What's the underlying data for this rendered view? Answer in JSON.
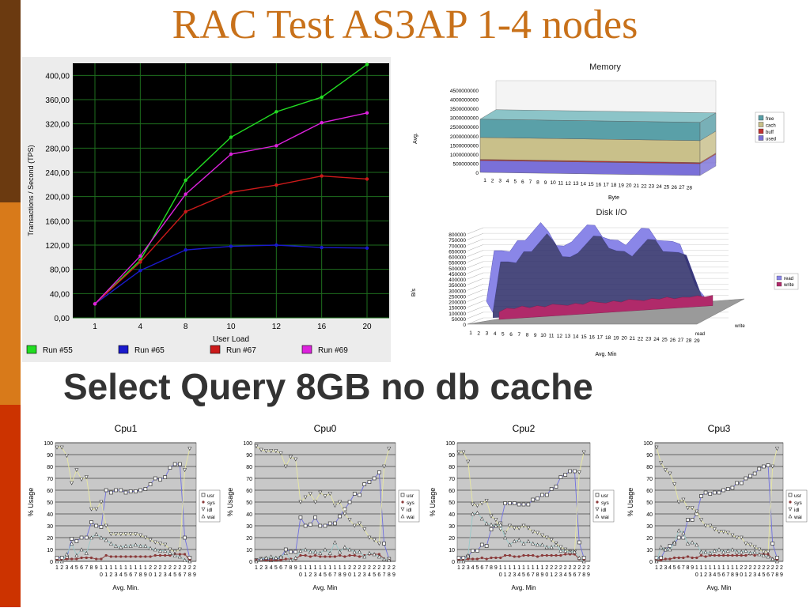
{
  "slide": {
    "title": "RAC Test AS3AP 1-4 nodes",
    "subtitle": "Select Query 8GB no db cache",
    "stripe_colors": [
      "#6b3a10",
      "#d87a1a",
      "#cc3300"
    ]
  },
  "chart_data": [
    {
      "id": "tps",
      "type": "line",
      "title": "",
      "xlabel": "User Load",
      "ylabel": "Transactions / Second (TPS)",
      "categories": [
        "1",
        "4",
        "8",
        "10",
        "12",
        "16",
        "20"
      ],
      "ylim": [
        0,
        420
      ],
      "yticks": [
        "0,00",
        "40,00",
        "80,00",
        "120,00",
        "160,00",
        "200,00",
        "240,00",
        "280,00",
        "320,00",
        "360,00",
        "400,00"
      ],
      "grid": true,
      "legend": "bottom",
      "series": [
        {
          "name": "Run #55",
          "color": "#22dd22",
          "values": [
            23,
            95,
            227,
            298,
            340,
            364,
            418
          ]
        },
        {
          "name": "Run #65",
          "color": "#1a1acc",
          "values": [
            23,
            78,
            112,
            118,
            120,
            116,
            115
          ]
        },
        {
          "name": "Run #67",
          "color": "#cc1a1a",
          "values": [
            23,
            92,
            175,
            207,
            219,
            234,
            229
          ]
        },
        {
          "name": "Run #69",
          "color": "#dd22dd",
          "values": [
            23,
            102,
            204,
            270,
            284,
            322,
            338
          ]
        }
      ]
    },
    {
      "id": "memory",
      "type": "area",
      "title": "Memory",
      "xlabel": "Byte",
      "ylabel": "Avg.",
      "categories": [
        "1",
        "2",
        "3",
        "4",
        "5",
        "6",
        "7",
        "8",
        "9",
        "10",
        "11",
        "12",
        "13",
        "14",
        "15",
        "16",
        "17",
        "18",
        "19",
        "20",
        "21",
        "22",
        "23",
        "24",
        "25",
        "26",
        "27",
        "28"
      ],
      "yticks": [
        "0",
        "500000000",
        "1000000000",
        "1500000000",
        "2000000000",
        "2500000000",
        "3000000000",
        "3500000000",
        "4000000000",
        "4500000000"
      ],
      "ylim": [
        0,
        4500000000
      ],
      "legend": "right",
      "series": [
        {
          "name": "free",
          "color": "#5aa0a8",
          "value": 1000000000
        },
        {
          "name": "cach",
          "color": "#c9c08a",
          "value": 1200000000
        },
        {
          "name": "buff",
          "color": "#c03030",
          "value": 60000000
        },
        {
          "name": "used",
          "color": "#7a70d8",
          "value": 650000000
        }
      ]
    },
    {
      "id": "diskio",
      "type": "area",
      "title": "Disk I/O",
      "xlabel": "Avg. Min",
      "ylabel": "B/s",
      "categories": [
        "1",
        "2",
        "3",
        "4",
        "5",
        "6",
        "7",
        "8",
        "9",
        "10",
        "11",
        "12",
        "13",
        "14",
        "15",
        "16",
        "17",
        "18",
        "19",
        "20",
        "21",
        "22",
        "23",
        "24",
        "25",
        "26",
        "27",
        "28",
        "29"
      ],
      "yticks": [
        "0",
        "50000",
        "100000",
        "150000",
        "200000",
        "250000",
        "300000",
        "350000",
        "400000",
        "450000",
        "500000",
        "550000",
        "600000",
        "650000",
        "700000",
        "750000",
        "800000"
      ],
      "ylim": [
        0,
        800000
      ],
      "depth_labels": [
        "write",
        "read"
      ],
      "legend": "right",
      "series": [
        {
          "name": "read",
          "color": "#8a86e8",
          "values": [
            20000,
            470000,
            470000,
            460000,
            560000,
            560000,
            640000,
            720000,
            640000,
            520000,
            520000,
            560000,
            640000,
            720000,
            720000,
            620000,
            600000,
            600000,
            560000,
            640000,
            720000,
            720000,
            620000,
            620000,
            620000,
            600000,
            420000,
            240000,
            160000
          ]
        },
        {
          "name": "write",
          "color": "#b02a6a",
          "values": [
            10000,
            40000,
            30000,
            50000,
            30000,
            45000,
            30000,
            50000,
            40000,
            30000,
            45000,
            30000,
            55000,
            40000,
            30000,
            45000,
            30000,
            50000,
            40000,
            30000,
            45000,
            35000,
            50000,
            30000,
            40000,
            35000,
            45000,
            30000,
            40000
          ]
        }
      ]
    },
    {
      "id": "cpu1",
      "type": "scatter",
      "title": "Cpu1",
      "xlabel": "Avg. Min.",
      "ylabel": "% Usage",
      "ylim": [
        0,
        100
      ],
      "yticks": [
        "0",
        "10",
        "20",
        "30",
        "40",
        "50",
        "60",
        "70",
        "80",
        "90",
        "100"
      ],
      "xticks_top": [
        "1",
        "2",
        "3",
        "4",
        "5",
        "6",
        "7",
        "8",
        "9",
        "1",
        "1",
        "1",
        "1",
        "1",
        "1",
        "1",
        "1",
        "1",
        "1",
        "2",
        "2",
        "2",
        "2",
        "2",
        "2",
        "2",
        "2",
        "2",
        "2"
      ],
      "xticks_bottom": [
        "",
        "",
        "",
        "",
        "",
        "",
        "",
        "",
        "",
        "0",
        "1",
        "2",
        "3",
        "4",
        "5",
        "6",
        "7",
        "8",
        "9",
        "0",
        "1",
        "2",
        "3",
        "4",
        "5",
        "6",
        "7",
        "8",
        "9"
      ],
      "legend": "right",
      "series": [
        {
          "name": "usr",
          "values": [
            3,
            3,
            3,
            19,
            17,
            20,
            20,
            33,
            30,
            29,
            60,
            58,
            60,
            60,
            58,
            59,
            59,
            60,
            61,
            65,
            70,
            69,
            71,
            79,
            82,
            82,
            20,
            3
          ]
        },
        {
          "name": "sys",
          "values": [
            1,
            1,
            2,
            2,
            2,
            3,
            3,
            3,
            2,
            2,
            5,
            4,
            4,
            4,
            4,
            4,
            4,
            4,
            4,
            4,
            5,
            5,
            5,
            5,
            6,
            6,
            6,
            1
          ]
        },
        {
          "name": "idl",
          "values": [
            96,
            96,
            89,
            66,
            77,
            69,
            71,
            44,
            44,
            50,
            30,
            23,
            23,
            23,
            23,
            23,
            23,
            22,
            20,
            18,
            16,
            15,
            14,
            10,
            8,
            10,
            77,
            95
          ]
        },
        {
          "name": "wai",
          "values": [
            0,
            0,
            6,
            15,
            5,
            10,
            7,
            20,
            23,
            20,
            18,
            15,
            13,
            12,
            13,
            13,
            14,
            13,
            13,
            11,
            10,
            9,
            9,
            7,
            5,
            4,
            1,
            0
          ]
        }
      ]
    },
    {
      "id": "cpu0",
      "type": "scatter",
      "title": "Cpu0",
      "xlabel": "Avg. Min",
      "ylabel": "% Usage",
      "ylim": [
        0,
        100
      ],
      "yticks": [
        "0",
        "10",
        "20",
        "30",
        "40",
        "50",
        "60",
        "70",
        "80",
        "90",
        "100"
      ],
      "xticks_top": [
        "1",
        "2",
        "3",
        "4",
        "5",
        "6",
        "7",
        "8",
        "9",
        "1",
        "1",
        "1",
        "1",
        "1",
        "1",
        "1",
        "1",
        "1",
        "1",
        "2",
        "2",
        "2",
        "2",
        "2",
        "2",
        "2",
        "2",
        "2",
        "2"
      ],
      "xticks_bottom": [
        "",
        "",
        "",
        "",
        "",
        "",
        "",
        "",
        "",
        "0",
        "1",
        "2",
        "3",
        "4",
        "5",
        "6",
        "7",
        "8",
        "9",
        "0",
        "1",
        "2",
        "3",
        "4",
        "5",
        "6",
        "7",
        "8",
        "9"
      ],
      "legend": "right",
      "series": [
        {
          "name": "usr",
          "values": [
            1,
            2,
            2,
            1,
            2,
            3,
            10,
            8,
            8,
            37,
            30,
            31,
            37,
            30,
            30,
            32,
            32,
            38,
            44,
            50,
            57,
            56,
            65,
            67,
            70,
            75,
            15,
            2
          ]
        },
        {
          "name": "sys",
          "values": [
            1,
            1,
            1,
            1,
            1,
            1,
            2,
            2,
            2,
            5,
            5,
            4,
            5,
            4,
            4,
            4,
            4,
            5,
            4,
            5,
            5,
            4,
            5,
            6,
            6,
            6,
            2,
            1
          ]
        },
        {
          "name": "idl",
          "values": [
            97,
            94,
            93,
            93,
            93,
            91,
            80,
            88,
            86,
            50,
            54,
            57,
            50,
            58,
            55,
            57,
            47,
            50,
            40,
            35,
            30,
            32,
            27,
            20,
            18,
            15,
            80,
            95
          ]
        },
        {
          "name": "wai",
          "values": [
            0,
            2,
            3,
            4,
            3,
            4,
            7,
            1,
            3,
            9,
            10,
            8,
            8,
            7,
            10,
            7,
            16,
            8,
            12,
            10,
            8,
            8,
            4,
            7,
            6,
            4,
            2,
            1
          ]
        }
      ]
    },
    {
      "id": "cpu2",
      "type": "scatter",
      "title": "Cpu2",
      "xlabel": "Avg. Min",
      "ylabel": "% Usage",
      "ylim": [
        0,
        100
      ],
      "yticks": [
        "0",
        "10",
        "20",
        "30",
        "40",
        "50",
        "60",
        "70",
        "80",
        "90",
        "100"
      ],
      "xticks_top": [
        "1",
        "2",
        "3",
        "4",
        "5",
        "6",
        "7",
        "8",
        "9",
        "1",
        "1",
        "1",
        "1",
        "1",
        "1",
        "1",
        "1",
        "1",
        "1",
        "2",
        "2",
        "2",
        "2",
        "2",
        "2",
        "2",
        "2",
        "2",
        "2"
      ],
      "xticks_bottom": [
        "",
        "",
        "",
        "",
        "",
        "",
        "",
        "",
        "",
        "0",
        "1",
        "2",
        "3",
        "4",
        "5",
        "6",
        "7",
        "8",
        "9",
        "0",
        "1",
        "2",
        "3",
        "4",
        "5",
        "6",
        "7",
        "8",
        "9"
      ],
      "legend": "right",
      "series": [
        {
          "name": "usr",
          "values": [
            3,
            3,
            4,
            9,
            9,
            14,
            13,
            27,
            30,
            32,
            49,
            49,
            49,
            48,
            48,
            48,
            52,
            53,
            56,
            56,
            61,
            63,
            71,
            73,
            76,
            76,
            16,
            3
          ]
        },
        {
          "name": "sys",
          "values": [
            1,
            1,
            2,
            2,
            2,
            3,
            2,
            3,
            3,
            3,
            5,
            5,
            4,
            4,
            5,
            5,
            5,
            4,
            5,
            5,
            5,
            5,
            5,
            6,
            6,
            6,
            2,
            1
          ]
        },
        {
          "name": "idl",
          "values": [
            92,
            92,
            84,
            48,
            47,
            49,
            51,
            38,
            35,
            27,
            24,
            30,
            28,
            28,
            30,
            28,
            25,
            24,
            22,
            20,
            18,
            15,
            12,
            10,
            8,
            8,
            75,
            92
          ]
        },
        {
          "name": "wai",
          "values": [
            0,
            0,
            5,
            40,
            41,
            36,
            32,
            31,
            30,
            31,
            20,
            14,
            17,
            18,
            15,
            17,
            15,
            14,
            14,
            12,
            12,
            14,
            9,
            9,
            8,
            8,
            3,
            0
          ]
        }
      ]
    },
    {
      "id": "cpu3",
      "type": "scatter",
      "title": "Cpu3",
      "xlabel": "Avg. Min",
      "ylabel": "% Usage",
      "ylim": [
        0,
        100
      ],
      "yticks": [
        "0",
        "10",
        "20",
        "30",
        "40",
        "50",
        "60",
        "70",
        "80",
        "90",
        "100"
      ],
      "xticks_top": [
        "1",
        "2",
        "3",
        "4",
        "5",
        "6",
        "7",
        "8",
        "9",
        "1",
        "1",
        "1",
        "1",
        "1",
        "1",
        "1",
        "1",
        "1",
        "1",
        "2",
        "2",
        "2",
        "2",
        "2",
        "2",
        "2",
        "2",
        "2",
        "2"
      ],
      "xticks_bottom": [
        "",
        "",
        "",
        "",
        "",
        "",
        "",
        "",
        "",
        "0",
        "1",
        "2",
        "3",
        "4",
        "5",
        "6",
        "7",
        "8",
        "9",
        "0",
        "1",
        "2",
        "3",
        "4",
        "5",
        "6",
        "7",
        "8",
        "9"
      ],
      "legend": "right",
      "series": [
        {
          "name": "usr",
          "values": [
            3,
            3,
            10,
            13,
            15,
            20,
            20,
            35,
            35,
            40,
            55,
            58,
            57,
            58,
            58,
            60,
            61,
            62,
            66,
            66,
            70,
            72,
            74,
            78,
            80,
            81,
            15,
            3
          ]
        },
        {
          "name": "sys",
          "values": [
            1,
            1,
            2,
            2,
            3,
            3,
            3,
            4,
            3,
            3,
            5,
            4,
            5,
            5,
            5,
            5,
            5,
            5,
            5,
            5,
            5,
            6,
            5,
            6,
            6,
            6,
            2,
            1
          ]
        },
        {
          "name": "idl",
          "values": [
            96,
            83,
            77,
            74,
            65,
            50,
            52,
            45,
            45,
            42,
            35,
            30,
            30,
            27,
            25,
            25,
            24,
            22,
            20,
            20,
            15,
            14,
            12,
            10,
            8,
            8,
            80,
            95
          ]
        },
        {
          "name": "wai",
          "values": [
            0,
            12,
            10,
            10,
            16,
            26,
            24,
            15,
            16,
            14,
            8,
            8,
            7,
            9,
            10,
            8,
            9,
            10,
            8,
            8,
            9,
            7,
            8,
            6,
            5,
            4,
            2,
            0
          ]
        }
      ]
    }
  ]
}
